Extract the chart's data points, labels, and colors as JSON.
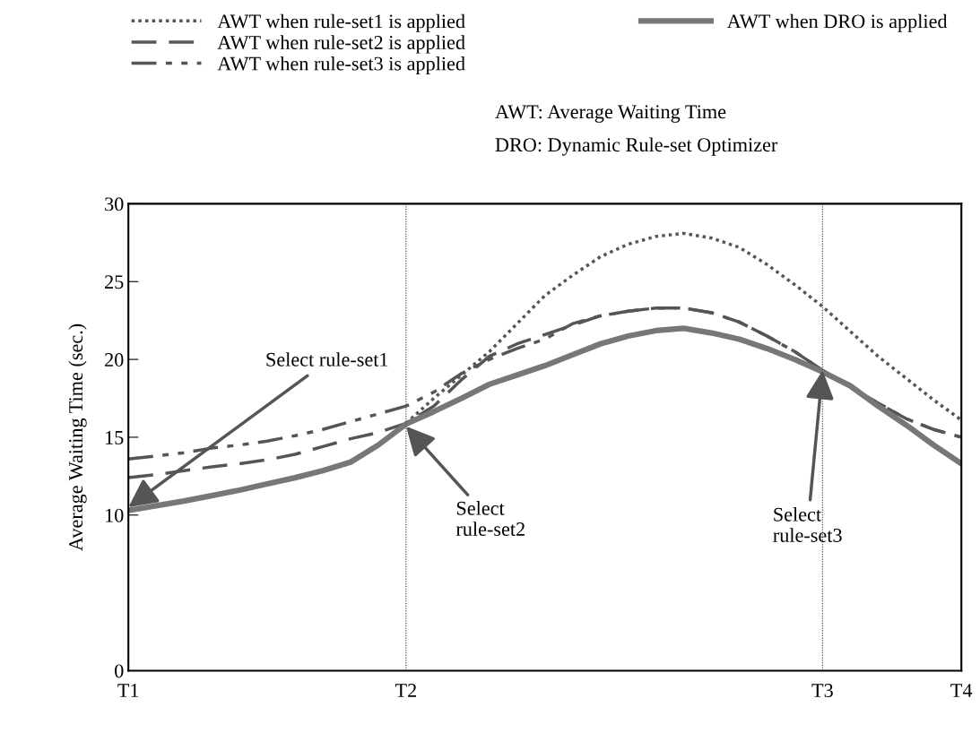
{
  "chart_data": {
    "type": "line",
    "ylabel": "Average Waiting Time (sec.)",
    "categories": [
      "T1",
      null,
      null,
      null,
      null,
      null,
      null,
      null,
      null,
      null,
      "T2",
      null,
      null,
      null,
      null,
      null,
      null,
      null,
      null,
      null,
      null,
      null,
      null,
      null,
      null,
      "T3",
      null,
      null,
      null,
      null,
      "T4"
    ],
    "ylim": [
      0,
      30
    ],
    "yticks": [
      0,
      10,
      15,
      20,
      25,
      30
    ],
    "grid": false,
    "legend": "top",
    "marker": "none",
    "ref_lines": [
      {
        "axis": "x",
        "value": "T2",
        "color": "#555555",
        "line_style": "dotted"
      },
      {
        "axis": "x",
        "value": "T3",
        "color": "#555555",
        "line_style": "dotted"
      }
    ],
    "series": [
      {
        "name": "AWT when rule-set1 is applied",
        "color": "#555555",
        "line_style": "dotted",
        "values": [
          null,
          null,
          null,
          null,
          null,
          null,
          null,
          null,
          null,
          null,
          15.9,
          17.5,
          19.0,
          20.5,
          22.3,
          24.1,
          25.4,
          26.6,
          27.4,
          27.9,
          28.1,
          27.8,
          27.2,
          26.1,
          24.8,
          23.4,
          21.8,
          20.2,
          18.8,
          17.4,
          16.1
        ]
      },
      {
        "name": "AWT when rule-set2 is applied",
        "color": "#555555",
        "line_style": "dashed",
        "values": [
          12.4,
          12.6,
          12.85,
          13.1,
          13.3,
          13.55,
          13.9,
          14.4,
          14.9,
          15.3,
          15.9,
          17.0,
          18.7,
          20.2,
          21.0,
          21.6,
          22.2,
          22.8,
          23.1,
          23.3,
          23.3,
          23.0,
          22.4,
          21.5,
          20.5,
          19.3,
          18.2,
          17.2,
          16.2,
          15.5,
          15.0
        ]
      },
      {
        "name": "AWT when rule-set3 is applied",
        "color": "#555555",
        "line_style": "dashdot",
        "values": [
          13.6,
          13.8,
          14.0,
          14.3,
          14.5,
          14.75,
          15.1,
          15.5,
          16.0,
          16.5,
          17.0,
          17.9,
          19.1,
          20.0,
          20.7,
          21.3,
          22.3,
          22.8,
          23.1,
          23.3,
          23.3,
          23.0,
          22.4,
          21.5,
          20.5,
          19.3,
          18.2,
          17.2,
          16.2,
          15.5,
          15.0
        ]
      },
      {
        "name": "AWT when DRO is applied",
        "color": "#777777",
        "line_style": "solid",
        "values": [
          10.3,
          10.6,
          10.9,
          11.25,
          11.6,
          12.0,
          12.4,
          12.85,
          13.4,
          14.5,
          15.85,
          16.65,
          17.5,
          18.4,
          19.0,
          19.6,
          20.3,
          21.0,
          21.5,
          21.85,
          22.0,
          21.7,
          21.3,
          20.7,
          20.0,
          19.2,
          18.3,
          17.0,
          15.8,
          14.5,
          13.3
        ]
      }
    ],
    "annotations": [
      {
        "text": "Select rule-set1",
        "x": "T1",
        "y": 10.5
      },
      {
        "text": "Select\nrule-set2",
        "x": "T2",
        "y": 15.7
      },
      {
        "text": "Select\nrule-set3",
        "x": "T3",
        "y": 19.3
      },
      "AWT: Average Waiting Time",
      "DRO: Dynamic Rule-set Optimizer"
    ]
  }
}
